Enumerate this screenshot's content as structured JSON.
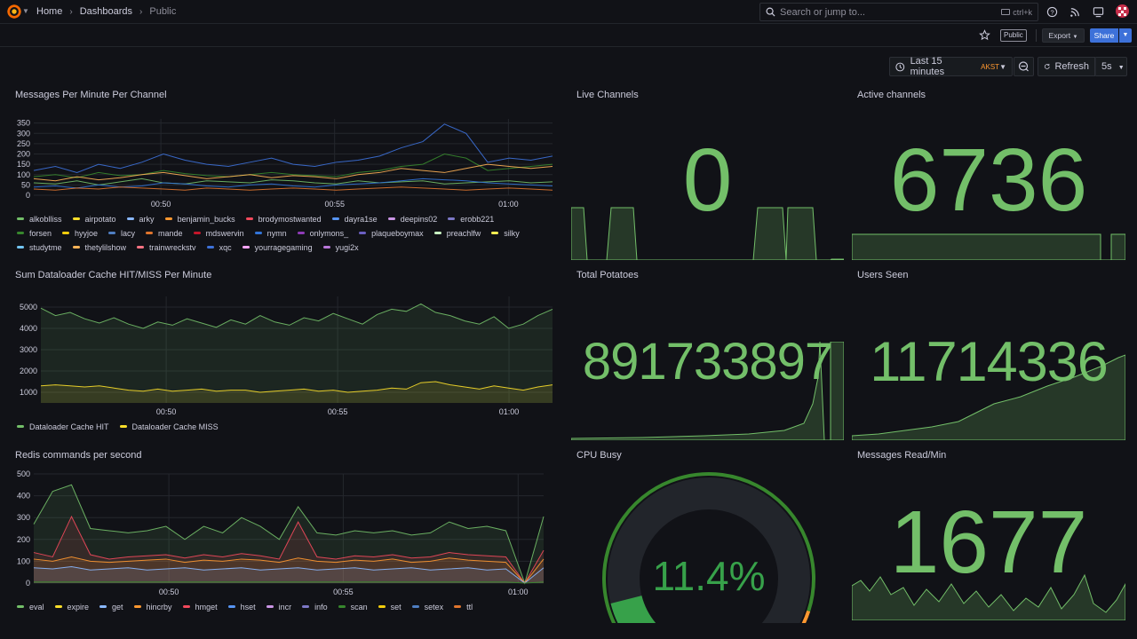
{
  "breadcrumb": {
    "home": "Home",
    "dashboards": "Dashboards",
    "current": "Public"
  },
  "search": {
    "placeholder": "Search or jump to...",
    "shortcut": "ctrl+k"
  },
  "toolbar": {
    "public_badge": "Public",
    "export_label": "Export",
    "share_label": "Share"
  },
  "time_picker": {
    "range": "Last 15 minutes",
    "timezone": "AKST",
    "refresh_label": "Refresh",
    "interval": "5s"
  },
  "colors": {
    "green": "#73bf69",
    "accent_blue": "#3d71d9",
    "orange": "#ff9830",
    "red": "#f2495c"
  },
  "panels": {
    "messages_per_minute": {
      "title": "Messages Per Minute Per Channel",
      "legend": [
        {
          "name": "alkoblliss",
          "color": "#73bf69"
        },
        {
          "name": "airpotato",
          "color": "#fade2a"
        },
        {
          "name": "arky",
          "color": "#8ab8ff"
        },
        {
          "name": "benjamin_bucks",
          "color": "#ff9830"
        },
        {
          "name": "brodymostwanted",
          "color": "#f2495c"
        },
        {
          "name": "dayra1se",
          "color": "#5794f2"
        },
        {
          "name": "deepins02",
          "color": "#ca95e5"
        },
        {
          "name": "erobb221",
          "color": "#7d78c7"
        },
        {
          "name": "forsen",
          "color": "#37872d"
        },
        {
          "name": "hyyjoe",
          "color": "#f2cc0c"
        },
        {
          "name": "lacy",
          "color": "#4f7ec2"
        },
        {
          "name": "mande",
          "color": "#e0752d"
        },
        {
          "name": "mdswervin",
          "color": "#c4162a"
        },
        {
          "name": "nymn",
          "color": "#3274d9"
        },
        {
          "name": "onlymons_",
          "color": "#8f3bb8"
        },
        {
          "name": "plaqueboymax",
          "color": "#6b5fc2"
        },
        {
          "name": "preachlfw",
          "color": "#c8f2c2"
        },
        {
          "name": "silky",
          "color": "#ffee52"
        },
        {
          "name": "studytme",
          "color": "#73c5f2"
        },
        {
          "name": "thetylilshow",
          "color": "#ffb357"
        },
        {
          "name": "trainwreckstv",
          "color": "#ff7383"
        },
        {
          "name": "xqc",
          "color": "#3d71d9"
        },
        {
          "name": "yourragegaming",
          "color": "#ffa6ff"
        },
        {
          "name": "yugi2x",
          "color": "#b877d9"
        }
      ]
    },
    "live_channels": {
      "title": "Live Channels",
      "value": "0"
    },
    "active_channels": {
      "title": "Active channels",
      "value": "6736"
    },
    "dataloader": {
      "title": "Sum Dataloader Cache HIT/MISS Per Minute",
      "legend": [
        {
          "name": "Dataloader Cache HIT",
          "color": "#73bf69"
        },
        {
          "name": "Dataloader Cache MISS",
          "color": "#fade2a"
        }
      ]
    },
    "total_potatoes": {
      "title": "Total Potatoes",
      "value": "891733897"
    },
    "users_seen": {
      "title": "Users Seen",
      "value": "11714336"
    },
    "redis": {
      "title": "Redis commands per second",
      "legend": [
        {
          "name": "eval",
          "color": "#73bf69"
        },
        {
          "name": "expire",
          "color": "#fade2a"
        },
        {
          "name": "get",
          "color": "#8ab8ff"
        },
        {
          "name": "hincrby",
          "color": "#ff9830"
        },
        {
          "name": "hmget",
          "color": "#f2495c"
        },
        {
          "name": "hset",
          "color": "#5794f2"
        },
        {
          "name": "incr",
          "color": "#ca95e5"
        },
        {
          "name": "info",
          "color": "#7d78c7"
        },
        {
          "name": "scan",
          "color": "#37872d"
        },
        {
          "name": "set",
          "color": "#f2cc0c"
        },
        {
          "name": "setex",
          "color": "#4f7ec2"
        },
        {
          "name": "ttl",
          "color": "#e0752d"
        }
      ]
    },
    "cpu_busy": {
      "title": "CPU Busy",
      "value": "11.4%",
      "percent": 11.4
    },
    "messages_read": {
      "title": "Messages Read/Min",
      "value": "1677"
    }
  },
  "chart_data": [
    {
      "type": "line",
      "title": "Messages Per Minute Per Channel",
      "x_ticks": [
        "00:50",
        "00:55",
        "01:00"
      ],
      "y_ticks": [
        "0",
        "50",
        "100",
        "150",
        "200",
        "250",
        "300",
        "350"
      ],
      "ylim": [
        0,
        370
      ],
      "grid": true,
      "legend_placement": "bottom",
      "series": [
        {
          "name": "alkoblliss",
          "values": [
            60,
            55,
            70,
            50,
            65,
            80,
            60,
            55,
            70,
            65,
            60,
            75,
            70,
            60,
            55,
            70,
            60,
            65,
            70,
            55,
            60,
            65,
            70,
            60,
            65
          ]
        },
        {
          "name": "xqc",
          "values": [
            120,
            140,
            110,
            150,
            130,
            160,
            200,
            170,
            150,
            140,
            160,
            180,
            150,
            140,
            160,
            170,
            190,
            230,
            260,
            345,
            300,
            160,
            180,
            170,
            190
          ]
        },
        {
          "name": "forsen",
          "values": [
            90,
            100,
            85,
            110,
            95,
            100,
            120,
            105,
            95,
            90,
            100,
            110,
            100,
            95,
            90,
            110,
            120,
            140,
            150,
            200,
            180,
            120,
            130,
            140,
            150
          ]
        },
        {
          "name": "thetylilshow",
          "values": [
            80,
            70,
            90,
            75,
            85,
            100,
            110,
            95,
            80,
            90,
            100,
            85,
            95,
            90,
            80,
            100,
            110,
            130,
            120,
            110,
            130,
            150,
            140,
            130,
            140
          ]
        },
        {
          "name": "nymn",
          "values": [
            40,
            45,
            35,
            50,
            40,
            45,
            60,
            55,
            45,
            40,
            50,
            55,
            45,
            40,
            50,
            55,
            60,
            70,
            80,
            75,
            70,
            60,
            55,
            50,
            45
          ]
        },
        {
          "name": "mande",
          "values": [
            30,
            25,
            35,
            30,
            40,
            35,
            30,
            25,
            35,
            30,
            25,
            30,
            35,
            30,
            25,
            30,
            35,
            40,
            35,
            30,
            25,
            30,
            35,
            30,
            25
          ]
        }
      ]
    },
    {
      "type": "line",
      "title": "Sum Dataloader Cache HIT/MISS Per Minute",
      "x_ticks": [
        "00:50",
        "00:55",
        "01:00"
      ],
      "y_ticks": [
        "1000",
        "2000",
        "3000",
        "4000",
        "5000"
      ],
      "ylim": [
        500,
        5500
      ],
      "grid": true,
      "legend_placement": "bottom",
      "series": [
        {
          "name": "Dataloader Cache HIT",
          "values": [
            4950,
            4600,
            4750,
            4450,
            4250,
            4500,
            4200,
            4000,
            4300,
            4150,
            4450,
            4250,
            4050,
            4400,
            4200,
            4600,
            4300,
            4150,
            4500,
            4350,
            4700,
            4450,
            4200,
            4650,
            4900,
            4800,
            5150,
            4750,
            4600,
            4350,
            4200,
            4550,
            4000,
            4200,
            4600,
            4900
          ]
        },
        {
          "name": "Dataloader Cache MISS",
          "values": [
            1300,
            1350,
            1300,
            1250,
            1300,
            1200,
            1100,
            1050,
            1150,
            1050,
            1100,
            1150,
            1050,
            1100,
            1100,
            1000,
            1050,
            1100,
            1150,
            1050,
            1100,
            1000,
            1050,
            1100,
            1200,
            1150,
            1450,
            1500,
            1350,
            1250,
            1150,
            1300,
            1200,
            1100,
            1250,
            1350
          ]
        }
      ]
    },
    {
      "type": "area",
      "title": "Redis commands per second",
      "x_ticks": [
        "00:50",
        "00:55",
        "01:00"
      ],
      "y_ticks": [
        "0",
        "100",
        "200",
        "300",
        "400",
        "500"
      ],
      "ylim": [
        0,
        500
      ],
      "grid": true,
      "legend_placement": "bottom",
      "series": [
        {
          "name": "eval",
          "values": [
            270,
            420,
            450,
            250,
            240,
            230,
            240,
            260,
            200,
            260,
            230,
            300,
            260,
            200,
            350,
            230,
            220,
            240,
            230,
            240,
            220,
            230,
            280,
            250,
            260,
            240,
            0,
            305
          ]
        },
        {
          "name": "hmget",
          "values": [
            140,
            120,
            305,
            130,
            110,
            120,
            125,
            130,
            115,
            130,
            120,
            135,
            125,
            110,
            280,
            120,
            110,
            125,
            120,
            130,
            115,
            120,
            140,
            130,
            125,
            120,
            0,
            150
          ]
        },
        {
          "name": "hincrby",
          "values": [
            110,
            100,
            120,
            100,
            95,
            100,
            105,
            110,
            95,
            105,
            100,
            110,
            105,
            95,
            115,
            100,
            95,
            105,
            100,
            110,
            95,
            100,
            115,
            105,
            100,
            95,
            0,
            110
          ]
        },
        {
          "name": "get",
          "values": [
            70,
            65,
            75,
            60,
            65,
            70,
            60,
            65,
            70,
            60,
            65,
            70,
            60,
            65,
            70,
            60,
            65,
            70,
            60,
            65,
            70,
            60,
            65,
            70,
            60,
            65,
            0,
            70
          ]
        },
        {
          "name": "scan",
          "values": [
            5,
            5,
            5,
            5,
            5,
            5,
            5,
            5,
            5,
            5,
            5,
            5,
            5,
            5,
            5,
            5,
            5,
            5,
            5,
            5,
            5,
            5,
            5,
            5,
            5,
            5,
            0,
            5
          ]
        }
      ]
    },
    {
      "type": "gauge",
      "title": "CPU Busy",
      "value": 11.4,
      "unit": "%",
      "range": [
        0,
        100
      ],
      "thresholds": [
        {
          "color": "#37872d",
          "from": 0
        },
        {
          "color": "#ff9830",
          "from": 90
        },
        {
          "color": "#f2495c",
          "from": 95
        }
      ]
    }
  ]
}
